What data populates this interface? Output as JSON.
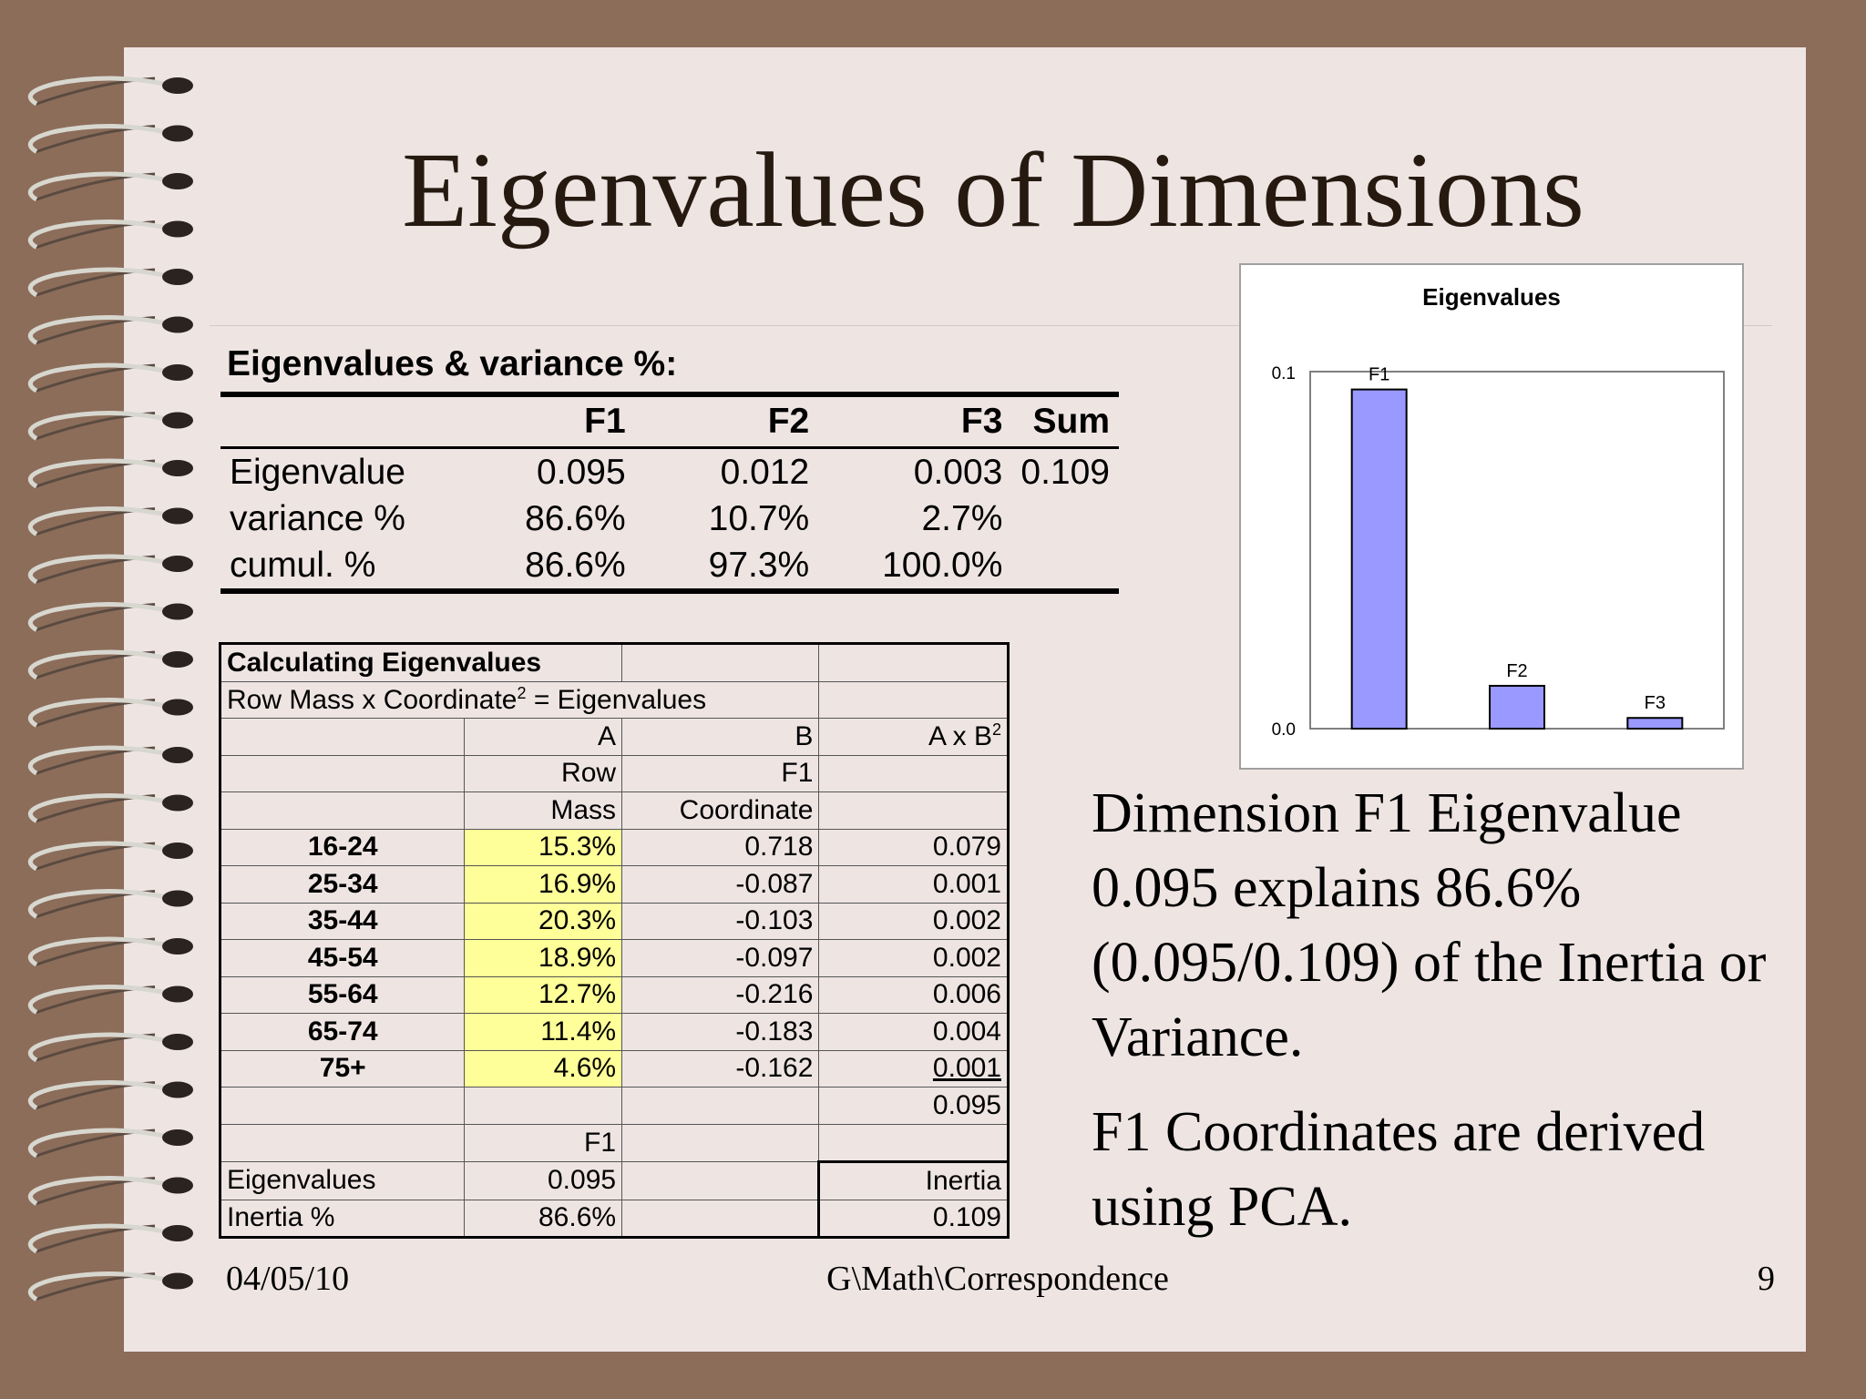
{
  "title": "Eigenvalues of Dimensions",
  "summary": {
    "heading": "Eigenvalues & variance %:",
    "columns": [
      "",
      "F1",
      "F2",
      "F3",
      "Sum"
    ],
    "rows": [
      [
        "Eigenvalue",
        "0.095",
        "0.012",
        "0.003",
        "0.109"
      ],
      [
        "variance %",
        "86.6%",
        "10.7%",
        "2.7%",
        ""
      ],
      [
        "cumul. %",
        "86.6%",
        "97.3%",
        "100.0%",
        ""
      ]
    ]
  },
  "calc": {
    "title": "Calculating Eigenvalues",
    "formula_prefix": "Row Mass x Coordinate",
    "formula_sup": "2",
    "formula_suffix": " = Eigenvalues",
    "col_a": "A",
    "col_b": "B",
    "col_ab": "A x B",
    "col_ab_sup": "2",
    "row_label": "Row",
    "f1_label": "F1",
    "mass_label": "Mass",
    "coord_label": "Coordinate",
    "rows": [
      {
        "age": "16-24",
        "mass": "15.3%",
        "coord": "0.718",
        "prod": "0.079"
      },
      {
        "age": "25-34",
        "mass": "16.9%",
        "coord": "-0.087",
        "prod": "0.001"
      },
      {
        "age": "35-44",
        "mass": "20.3%",
        "coord": "-0.103",
        "prod": "0.002"
      },
      {
        "age": "45-54",
        "mass": "18.9%",
        "coord": "-0.097",
        "prod": "0.002"
      },
      {
        "age": "55-64",
        "mass": "12.7%",
        "coord": "-0.216",
        "prod": "0.006"
      },
      {
        "age": "65-74",
        "mass": "11.4%",
        "coord": "-0.183",
        "prod": "0.004"
      },
      {
        "age": "75+",
        "mass": "4.6%",
        "coord": "-0.162",
        "prod": "0.001"
      }
    ],
    "total": "0.095",
    "f1_footer": "F1",
    "eig_label": "Eigenvalues",
    "eig_value": "0.095",
    "inertia_label": "Inertia",
    "inertia_pct_label": "Inertia %",
    "inertia_pct_value": "86.6%",
    "inertia_value": "0.109"
  },
  "chart_data": {
    "type": "bar",
    "title": "Eigenvalues",
    "categories": [
      "F1",
      "F2",
      "F3"
    ],
    "values": [
      0.095,
      0.012,
      0.003
    ],
    "ytick_labels": [
      "0.0",
      "0.1"
    ],
    "ylim": [
      0,
      0.1
    ],
    "bar_color": "#9999ff",
    "grid": false
  },
  "body": {
    "p1": "Dimension F1 Eigenvalue 0.095 explains 86.6% (0.095/0.109) of the Inertia or Variance.",
    "p2": "F1 Coordinates are derived using PCA."
  },
  "footer": {
    "date": "04/05/10",
    "path": "G\\Math\\Correspondence",
    "page": "9"
  }
}
